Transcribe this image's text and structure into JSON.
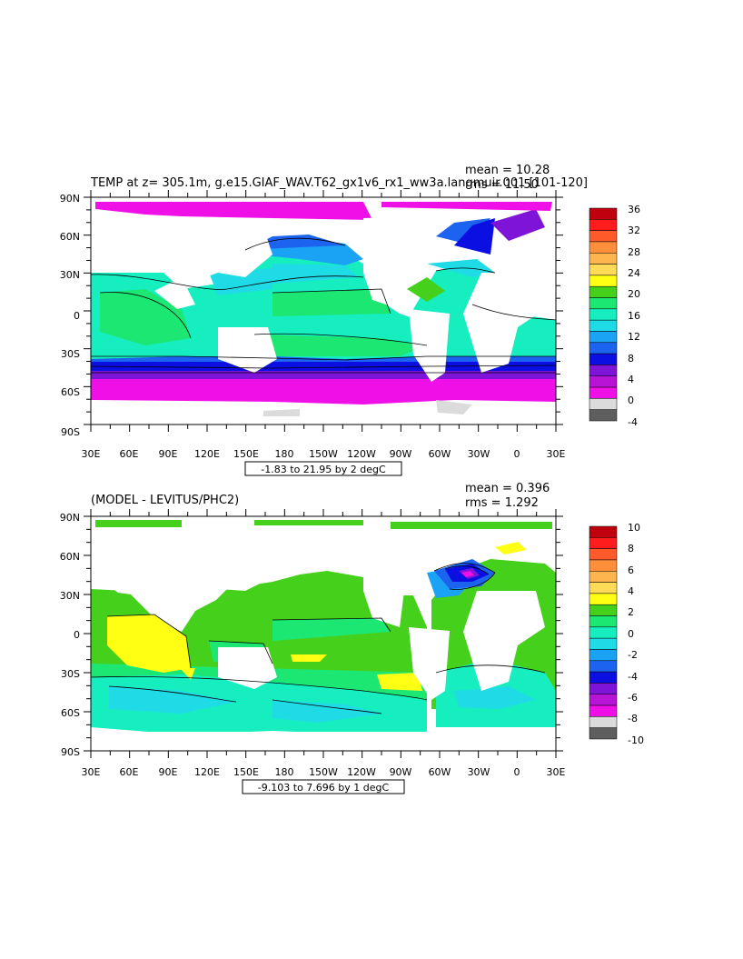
{
  "chart_data": [
    {
      "type": "heatmap",
      "title": "TEMP at z= 305.1m, g.e15.GIAF_WAV.T62_gx1v6_rx1_ww3a.langmuir.001 [101-120]",
      "stats": [
        "mean = 10.28",
        "rms = 11.50"
      ],
      "range_label": "-1.83 to 21.95 by 2 degC",
      "x_ticks": [
        "30E",
        "60E",
        "90E",
        "120E",
        "150E",
        "180",
        "150W",
        "120W",
        "90W",
        "60W",
        "30W",
        "0",
        "30E"
      ],
      "y_ticks": [
        "90N",
        "60N",
        "30N",
        "0",
        "30S",
        "60S",
        "90S"
      ],
      "colorbar": {
        "labels": [
          "36",
          "32",
          "28",
          "24",
          "20",
          "16",
          "12",
          "8",
          "4",
          "0",
          "-4"
        ],
        "colors": [
          "#c0000f",
          "#ff1c1c",
          "#ff5a2a",
          "#ff8f3a",
          "#ffb54d",
          "#ffdb58",
          "#ffff14",
          "#45d11b",
          "#1ce773",
          "#17eec0",
          "#1fdbe6",
          "#1aa2f5",
          "#1c63f0",
          "#0b0fe1",
          "#7d14d8",
          "#b814d6",
          "#ee10e6",
          "#dbdbdb",
          "#5e5e5e"
        ]
      }
    },
    {
      "type": "heatmap",
      "title": "(MODEL - LEVITUS/PHC2)",
      "stats": [
        "mean = 0.396",
        "rms = 1.292"
      ],
      "range_label": "-9.103 to 7.696 by 1 degC",
      "x_ticks": [
        "30E",
        "60E",
        "90E",
        "120E",
        "150E",
        "180",
        "150W",
        "120W",
        "90W",
        "60W",
        "30W",
        "0",
        "30E"
      ],
      "y_ticks": [
        "90N",
        "60N",
        "30N",
        "0",
        "30S",
        "60S",
        "90S"
      ],
      "colorbar": {
        "labels": [
          "10",
          "8",
          "6",
          "4",
          "2",
          "0",
          "-2",
          "-4",
          "-6",
          "-8",
          "-10"
        ],
        "colors": [
          "#c0000f",
          "#ff1c1c",
          "#ff5a2a",
          "#ff8f3a",
          "#ffb54d",
          "#ffdb58",
          "#ffff14",
          "#45d11b",
          "#1ce773",
          "#17eec0",
          "#1fdbe6",
          "#1aa2f5",
          "#1c63f0",
          "#0b0fe1",
          "#7d14d8",
          "#b814d6",
          "#ee10e6",
          "#dbdbdb",
          "#5e5e5e"
        ]
      }
    }
  ]
}
